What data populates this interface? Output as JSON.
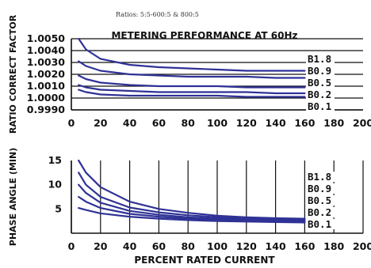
{
  "header": {
    "caption": "Ratios: 5:5-600:5 & 800:5"
  },
  "chart_data": [
    {
      "type": "line",
      "title": "METERING PERFORMANCE AT 60Hz",
      "ylabel": "RATIO CORRECT FACTOR",
      "xlabel": "",
      "xlim": [
        0,
        200
      ],
      "ylim": [
        0.999,
        1.005
      ],
      "xticks": [
        0,
        20,
        40,
        60,
        80,
        100,
        120,
        140,
        160,
        180,
        200
      ],
      "yticks": [
        0.999,
        1.0,
        1.001,
        1.002,
        1.003,
        1.004,
        1.005
      ],
      "ytick_labels": [
        "0.9990",
        "1.0000",
        "1.0010",
        "1.0020",
        "1.0030",
        "1.0040",
        "1.0050"
      ],
      "xtick_labels": [
        "0",
        "20",
        "40",
        "60",
        "80",
        "100",
        "120",
        "140",
        "160",
        "180",
        "200"
      ],
      "grid": "horizontal",
      "legend": "right",
      "series": [
        {
          "name": "B1.8",
          "x": [
            5,
            10,
            20,
            40,
            60,
            80,
            100,
            120,
            140,
            160
          ],
          "y": [
            1.005,
            1.0041,
            1.0033,
            1.0028,
            1.0026,
            1.0025,
            1.0024,
            1.0023,
            1.0023,
            1.0023
          ]
        },
        {
          "name": "B0.9",
          "x": [
            5,
            10,
            20,
            40,
            60,
            80,
            100,
            120,
            140,
            160
          ],
          "y": [
            1.0031,
            1.0027,
            1.0023,
            1.002,
            1.0019,
            1.0018,
            1.0018,
            1.0018,
            1.0017,
            1.0017
          ]
        },
        {
          "name": "B0.5",
          "x": [
            5,
            10,
            20,
            40,
            60,
            80,
            100,
            120,
            140,
            160
          ],
          "y": [
            1.0019,
            1.0016,
            1.0013,
            1.0011,
            1.001,
            1.001,
            1.001,
            1.0009,
            1.0009,
            1.0009
          ]
        },
        {
          "name": "B0.2",
          "x": [
            5,
            10,
            20,
            40,
            60,
            80,
            100,
            120,
            140,
            160
          ],
          "y": [
            1.0011,
            1.0009,
            1.0007,
            1.0006,
            1.0005,
            1.0005,
            1.0005,
            1.0005,
            1.0004,
            1.0004
          ]
        },
        {
          "name": "B0.1",
          "x": [
            5,
            10,
            20,
            40,
            60,
            80,
            100,
            120,
            140,
            160
          ],
          "y": [
            1.0007,
            1.0005,
            1.0003,
            1.0002,
            1.0002,
            1.0002,
            1.0002,
            1.0001,
            1.0001,
            1.0001
          ]
        }
      ]
    },
    {
      "type": "line",
      "title": "",
      "ylabel": "PHASE ANGLE (MIN)",
      "xlabel": "PERCENT RATED CURRENT",
      "xlim": [
        0,
        200
      ],
      "ylim": [
        0,
        15
      ],
      "xticks": [
        0,
        20,
        40,
        60,
        80,
        100,
        120,
        140,
        160,
        180,
        200
      ],
      "yticks": [
        5,
        10,
        15
      ],
      "ytick_labels": [
        "5",
        "10",
        "15"
      ],
      "xtick_labels": [
        "0",
        "20",
        "40",
        "60",
        "80",
        "100",
        "120",
        "140",
        "160",
        "180",
        "200"
      ],
      "grid": "vertical",
      "legend": "right",
      "series": [
        {
          "name": "B1.8",
          "x": [
            5,
            10,
            20,
            40,
            60,
            80,
            100,
            120,
            140,
            160
          ],
          "y": [
            15,
            12.5,
            9.5,
            6.5,
            5,
            4.2,
            3.6,
            3.3,
            3.1,
            3
          ]
        },
        {
          "name": "B0.9",
          "x": [
            5,
            10,
            20,
            40,
            60,
            80,
            100,
            120,
            140,
            160
          ],
          "y": [
            12.5,
            10,
            7.5,
            5.3,
            4.3,
            3.7,
            3.3,
            3,
            2.9,
            2.8
          ]
        },
        {
          "name": "B0.5",
          "x": [
            5,
            10,
            20,
            40,
            60,
            80,
            100,
            120,
            140,
            160
          ],
          "y": [
            10,
            8.3,
            6.3,
            4.6,
            3.8,
            3.3,
            3,
            2.8,
            2.7,
            2.6
          ]
        },
        {
          "name": "B0.2",
          "x": [
            5,
            10,
            20,
            40,
            60,
            80,
            100,
            120,
            140,
            160
          ],
          "y": [
            7.5,
            6.5,
            5.2,
            4,
            3.4,
            3,
            2.8,
            2.6,
            2.5,
            2.4
          ]
        },
        {
          "name": "B0.1",
          "x": [
            5,
            10,
            20,
            40,
            60,
            80,
            100,
            120,
            140,
            160
          ],
          "y": [
            5.2,
            4.8,
            4.1,
            3.4,
            3,
            2.7,
            2.5,
            2.4,
            2.3,
            2.2
          ]
        }
      ]
    }
  ],
  "colors": {
    "curve": "#2f3296",
    "axis": "#111111",
    "grid": "#111111"
  }
}
